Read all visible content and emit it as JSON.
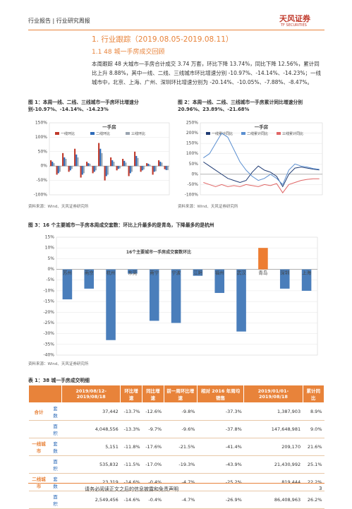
{
  "header": {
    "left": "行业报告 | 行业研究周报",
    "logo": "天风证券",
    "logo_sub": "TF SECURITIES"
  },
  "section": {
    "title": "1. 行业跟踪（2019.08.05-2019.08.11）",
    "subtitle": "1.1 48 城一手房成交回顾",
    "paragraph": "本周跟踪 48 大城市一手房合计成交 3.74 万套，环比下降 13.74%，同比下降 12.56%，累计同比上升 8.88%，其中一线、二线、三线城市环比增速分别 -10.97%、-14.14%、-14.23%；一线城市中，北京、上海、广州、深圳环比增速分别为 -20.14%、-10.05%、-7.88%、-8.47%。"
  },
  "figures": [
    {
      "caption": "图 1：本周一线、二线、三线城市一手房环比增速分别-10.97%、-14.14%、-14.23%",
      "source": "资料来源：Wind、天风证券研究所"
    },
    {
      "caption": "图 2：本周一线、二线、三线城市一手房累计同比增速分别 20.96%、23.89%、-21.68%",
      "source": "资料来源：Wind、天风证券研究所"
    },
    {
      "caption": "图 3：16 个主要城市一手房本周成交套数：环比上升最多的是青岛，下降最多的是杭州",
      "source": "资料来源：Wind、天风证券研究所"
    }
  ],
  "chart_data": [
    {
      "type": "bar",
      "title": "一手房",
      "series": [
        {
          "name": "一线环比",
          "color": "#c0392b",
          "values": [
            20,
            -30,
            45,
            -20,
            60,
            -40,
            15,
            -25,
            80,
            -50,
            30,
            -15,
            25,
            -35,
            50,
            -20,
            10,
            -30,
            20,
            -11
          ]
        },
        {
          "name": "二线环比",
          "color": "#2e6bb8",
          "values": [
            15,
            -25,
            30,
            -15,
            40,
            -30,
            10,
            -20,
            60,
            -35,
            20,
            -10,
            18,
            -25,
            35,
            -15,
            8,
            -20,
            15,
            -14
          ]
        },
        {
          "name": "三线环比",
          "color": "#9aa4b0",
          "values": [
            10,
            -20,
            25,
            -10,
            30,
            -25,
            8,
            -15,
            45,
            -30,
            15,
            -8,
            12,
            -20,
            28,
            -12,
            5,
            -18,
            12,
            -14
          ]
        }
      ],
      "ylim": [
        -100,
        150
      ],
      "yticks": [
        {
          "value": -100,
          "label": "-100%"
        },
        {
          "value": -50,
          "label": "-50%"
        },
        {
          "value": 0,
          "label": "0%"
        },
        {
          "value": 50,
          "label": "50%"
        },
        {
          "value": 100,
          "label": "100%"
        },
        {
          "value": 150,
          "label": "150%"
        }
      ]
    },
    {
      "type": "line",
      "title": "一手房",
      "series": [
        {
          "name": "一线累计同比",
          "color": "#1f3b73",
          "values": [
            60,
            40,
            20,
            0,
            -20,
            -30,
            -40,
            -30,
            10,
            40,
            20,
            10,
            -10,
            -60,
            0,
            30,
            35,
            30,
            25,
            21
          ]
        },
        {
          "name": "二线累计同比",
          "color": "#5b8fd0",
          "values": [
            80,
            100,
            150,
            200,
            180,
            120,
            60,
            20,
            -10,
            -30,
            -20,
            0,
            -20,
            -50,
            20,
            50,
            40,
            35,
            28,
            24
          ]
        },
        {
          "name": "三线累计同比",
          "color": "#e06666",
          "values": [
            -40,
            -50,
            -60,
            -50,
            -60,
            -55,
            -60,
            -50,
            -55,
            -60,
            -50,
            -55,
            -45,
            -90,
            -50,
            -40,
            -30,
            -25,
            -22,
            -22
          ]
        }
      ],
      "ylim": [
        -100,
        250
      ],
      "yticks": [
        {
          "value": -100,
          "label": "-100%"
        },
        {
          "value": -50,
          "label": "-50%"
        },
        {
          "value": 0,
          "label": "0%"
        },
        {
          "value": 50,
          "label": "50%"
        },
        {
          "value": 100,
          "label": "100%"
        },
        {
          "value": 150,
          "label": "150%"
        },
        {
          "value": 200,
          "label": "200%"
        },
        {
          "value": 250,
          "label": "250%"
        }
      ]
    },
    {
      "type": "bar",
      "title": "16个主要城市一手房成交套数环比",
      "categories": [
        "苏州",
        "南京",
        "杭州",
        "东莞",
        "南宁",
        "宁波",
        "江阴",
        "福州",
        "武汉",
        "青岛",
        "深圳",
        "上海"
      ],
      "values": [
        -14,
        -9,
        -33,
        -2,
        -24,
        -25,
        -3,
        -11,
        -29,
        10,
        -9,
        -10
      ],
      "colors": [
        "#4a7ebb",
        "#4a7ebb",
        "#4a7ebb",
        "#4a7ebb",
        "#4a7ebb",
        "#4a7ebb",
        "#4a7ebb",
        "#4a7ebb",
        "#4a7ebb",
        "#ed7d31",
        "#4a7ebb",
        "#4a7ebb"
      ],
      "ylim": [
        -40,
        15
      ],
      "yticks": [
        {
          "value": -40,
          "label": "-40%"
        },
        {
          "value": -35,
          "label": "-35%"
        },
        {
          "value": -30,
          "label": "-30%"
        },
        {
          "value": -25,
          "label": "-25%"
        },
        {
          "value": -20,
          "label": "-20%"
        },
        {
          "value": -15,
          "label": "-15%"
        },
        {
          "value": -10,
          "label": "-10%"
        },
        {
          "value": -5,
          "label": "-5%"
        },
        {
          "value": 0,
          "label": "0%"
        },
        {
          "value": 5,
          "label": "5%"
        },
        {
          "value": 10,
          "label": "10%"
        },
        {
          "value": 15,
          "label": "15%"
        }
      ]
    }
  ],
  "table": {
    "caption": "表 1：38 城一手房成交明细",
    "head": [
      "2019/08/12-2019/08/18",
      "环比增速",
      "同比增速",
      "前一周环比增速",
      "相对 2016 年周均销售",
      "2019/01/01-2019/08/18",
      "累计同比"
    ],
    "rows": [
      [
        "合计",
        "套数",
        "37,442",
        "-13.7%",
        "-12.6%",
        "-9.8%",
        "-37.3%",
        "1,387,903",
        "8.9%"
      ],
      [
        "",
        "面积",
        "4,048,556",
        "-13.3%",
        "-9.7%",
        "-9.6%",
        "-37.8%",
        "147,648,981",
        "9.0%"
      ],
      [
        "一线城市",
        "套数",
        "5,151",
        "-11.8%",
        "-17.6%",
        "-21.5%",
        "-41.4%",
        "209,170",
        "21.6%"
      ],
      [
        "",
        "面积",
        "535,832",
        "-11.5%",
        "-17.0%",
        "-19.3%",
        "-43.9%",
        "21,430,992",
        "25.1%"
      ],
      [
        "二线城市",
        "套数",
        "23,319",
        "-14.6%",
        "-0.4%",
        "-4.7%",
        "-25.2%",
        "819,444",
        "22.2%"
      ],
      [
        "",
        "面积",
        "2,549,456",
        "-14.6%",
        "-0.4%",
        "-4.7%",
        "-26.9%",
        "86,408,963",
        "26.2%"
      ]
    ]
  },
  "footer": {
    "disclaimer": "请务必阅读正文之后的信息披露和免责声明",
    "page": "3"
  }
}
